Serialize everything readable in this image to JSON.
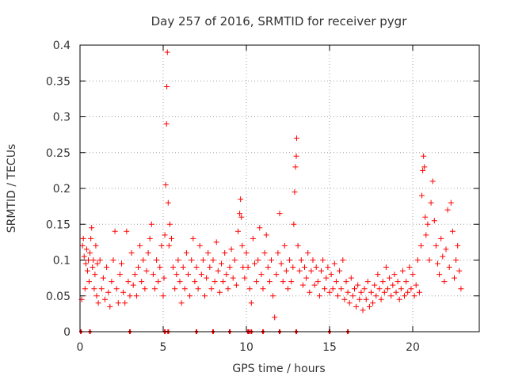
{
  "chart_data": {
    "type": "scatter",
    "title": "Day 257 of 2016, SRMTID for receiver pygr",
    "xlabel": "GPS time / hours",
    "ylabel": "SRMTID / TECUs",
    "xlim": [
      0,
      24
    ],
    "ylim": [
      0,
      0.4
    ],
    "x_ticks": [
      0,
      5,
      10,
      15,
      20
    ],
    "x_tick_labels": [
      "0",
      "5",
      "10",
      "15",
      "20"
    ],
    "y_ticks": [
      0,
      0.05,
      0.1,
      0.15,
      0.2,
      0.25,
      0.3,
      0.35,
      0.4
    ],
    "y_tick_labels": [
      "0",
      "0.05",
      "0.1",
      "0.15",
      "0.2",
      "0.25",
      "0.3",
      "0.35",
      "0.4"
    ],
    "grid": true,
    "marker": "+",
    "color": "#ff0000",
    "series": [
      {
        "name": "SRMTID",
        "points": [
          [
            0.1,
            0.045
          ],
          [
            0.15,
            0.12
          ],
          [
            0.2,
            0.13
          ],
          [
            0.25,
            0.105
          ],
          [
            0.3,
            0.06
          ],
          [
            0.35,
            0.095
          ],
          [
            0.4,
            0.115
          ],
          [
            0.45,
            0.085
          ],
          [
            0.5,
            0.1
          ],
          [
            0.55,
            0.07
          ],
          [
            0.6,
            0.11
          ],
          [
            0.65,
            0.13
          ],
          [
            0.7,
            0.145
          ],
          [
            0.75,
            0.09
          ],
          [
            0.8,
            0.1
          ],
          [
            0.85,
            0.06
          ],
          [
            0.9,
            0.08
          ],
          [
            0.95,
            0.12
          ],
          [
            1.0,
            0.05
          ],
          [
            1.05,
            0.095
          ],
          [
            1.1,
            0.04
          ],
          [
            1.2,
            0.1
          ],
          [
            1.3,
            0.06
          ],
          [
            1.4,
            0.075
          ],
          [
            1.5,
            0.045
          ],
          [
            1.6,
            0.09
          ],
          [
            1.7,
            0.055
          ],
          [
            1.8,
            0.035
          ],
          [
            1.9,
            0.07
          ],
          [
            2.0,
            0.1
          ],
          [
            2.1,
            0.14
          ],
          [
            2.2,
            0.06
          ],
          [
            2.3,
            0.04
          ],
          [
            2.4,
            0.08
          ],
          [
            2.5,
            0.095
          ],
          [
            2.6,
            0.055
          ],
          [
            2.7,
            0.04
          ],
          [
            2.8,
            0.14
          ],
          [
            2.9,
            0.07
          ],
          [
            3.0,
            0.05
          ],
          [
            3.1,
            0.11
          ],
          [
            3.2,
            0.065
          ],
          [
            3.3,
            0.08
          ],
          [
            3.4,
            0.05
          ],
          [
            3.5,
            0.09
          ],
          [
            3.6,
            0.12
          ],
          [
            3.7,
            0.07
          ],
          [
            3.8,
            0.1
          ],
          [
            3.9,
            0.06
          ],
          [
            4.0,
            0.085
          ],
          [
            4.1,
            0.11
          ],
          [
            4.2,
            0.13
          ],
          [
            4.3,
            0.15
          ],
          [
            4.4,
            0.08
          ],
          [
            4.5,
            0.06
          ],
          [
            4.6,
            0.1
          ],
          [
            4.7,
            0.07
          ],
          [
            4.8,
            0.09
          ],
          [
            4.9,
            0.12
          ],
          [
            5.0,
            0.05
          ],
          [
            5.05,
            0.075
          ],
          [
            5.1,
            0.135
          ],
          [
            5.15,
            0.205
          ],
          [
            5.2,
            0.29
          ],
          [
            5.22,
            0.342
          ],
          [
            5.25,
            0.39
          ],
          [
            5.3,
            0.18
          ],
          [
            5.35,
            0.12
          ],
          [
            5.4,
            0.15
          ],
          [
            5.5,
            0.13
          ],
          [
            5.6,
            0.09
          ],
          [
            5.7,
            0.06
          ],
          [
            5.8,
            0.08
          ],
          [
            5.9,
            0.1
          ],
          [
            6.0,
            0.07
          ],
          [
            6.1,
            0.04
          ],
          [
            6.2,
            0.09
          ],
          [
            6.3,
            0.06
          ],
          [
            6.4,
            0.11
          ],
          [
            6.5,
            0.08
          ],
          [
            6.6,
            0.05
          ],
          [
            6.7,
            0.1
          ],
          [
            6.8,
            0.13
          ],
          [
            6.9,
            0.07
          ],
          [
            7.0,
            0.09
          ],
          [
            7.1,
            0.06
          ],
          [
            7.2,
            0.12
          ],
          [
            7.3,
            0.08
          ],
          [
            7.4,
            0.1
          ],
          [
            7.5,
            0.05
          ],
          [
            7.6,
            0.075
          ],
          [
            7.7,
            0.11
          ],
          [
            7.8,
            0.09
          ],
          [
            7.9,
            0.06
          ],
          [
            8.0,
            0.1
          ],
          [
            8.1,
            0.07
          ],
          [
            8.2,
            0.125
          ],
          [
            8.3,
            0.085
          ],
          [
            8.4,
            0.055
          ],
          [
            8.5,
            0.095
          ],
          [
            8.6,
            0.07
          ],
          [
            8.7,
            0.11
          ],
          [
            8.8,
            0.08
          ],
          [
            8.9,
            0.06
          ],
          [
            9.0,
            0.09
          ],
          [
            9.1,
            0.115
          ],
          [
            9.2,
            0.075
          ],
          [
            9.3,
            0.1
          ],
          [
            9.4,
            0.065
          ],
          [
            9.5,
            0.14
          ],
          [
            9.6,
            0.165
          ],
          [
            9.65,
            0.185
          ],
          [
            9.7,
            0.16
          ],
          [
            9.75,
            0.12
          ],
          [
            9.8,
            0.09
          ],
          [
            9.9,
            0.075
          ],
          [
            10.0,
            0.11
          ],
          [
            10.1,
            0.09
          ],
          [
            10.2,
            0.06
          ],
          [
            10.3,
            0.04
          ],
          [
            10.4,
            0.13
          ],
          [
            10.5,
            0.095
          ],
          [
            10.6,
            0.07
          ],
          [
            10.7,
            0.1
          ],
          [
            10.8,
            0.145
          ],
          [
            10.9,
            0.08
          ],
          [
            11.0,
            0.06
          ],
          [
            11.1,
            0.11
          ],
          [
            11.2,
            0.135
          ],
          [
            11.3,
            0.09
          ],
          [
            11.4,
            0.07
          ],
          [
            11.5,
            0.1
          ],
          [
            11.6,
            0.05
          ],
          [
            11.7,
            0.02
          ],
          [
            11.8,
            0.08
          ],
          [
            11.9,
            0.11
          ],
          [
            12.0,
            0.165
          ],
          [
            12.1,
            0.095
          ],
          [
            12.2,
            0.07
          ],
          [
            12.3,
            0.12
          ],
          [
            12.4,
            0.085
          ],
          [
            12.5,
            0.06
          ],
          [
            12.6,
            0.1
          ],
          [
            12.7,
            0.07
          ],
          [
            12.8,
            0.09
          ],
          [
            12.85,
            0.15
          ],
          [
            12.9,
            0.195
          ],
          [
            12.95,
            0.23
          ],
          [
            13.0,
            0.245
          ],
          [
            13.02,
            0.27
          ],
          [
            13.1,
            0.12
          ],
          [
            13.2,
            0.085
          ],
          [
            13.3,
            0.1
          ],
          [
            13.4,
            0.065
          ],
          [
            13.5,
            0.09
          ],
          [
            13.6,
            0.075
          ],
          [
            13.7,
            0.11
          ],
          [
            13.8,
            0.055
          ],
          [
            13.9,
            0.085
          ],
          [
            14.0,
            0.1
          ],
          [
            14.1,
            0.065
          ],
          [
            14.2,
            0.09
          ],
          [
            14.3,
            0.07
          ],
          [
            14.4,
            0.05
          ],
          [
            14.5,
            0.085
          ],
          [
            14.6,
            0.1
          ],
          [
            14.7,
            0.06
          ],
          [
            14.8,
            0.075
          ],
          [
            14.9,
            0.09
          ],
          [
            15.0,
            0.055
          ],
          [
            15.1,
            0.08
          ],
          [
            15.2,
            0.06
          ],
          [
            15.3,
            0.095
          ],
          [
            15.4,
            0.07
          ],
          [
            15.5,
            0.05
          ],
          [
            15.6,
            0.085
          ],
          [
            15.7,
            0.06
          ],
          [
            15.8,
            0.1
          ],
          [
            15.9,
            0.045
          ],
          [
            16.0,
            0.07
          ],
          [
            16.1,
            0.055
          ],
          [
            16.2,
            0.04
          ],
          [
            16.3,
            0.075
          ],
          [
            16.4,
            0.05
          ],
          [
            16.5,
            0.06
          ],
          [
            16.6,
            0.035
          ],
          [
            16.7,
            0.065
          ],
          [
            16.8,
            0.045
          ],
          [
            16.9,
            0.055
          ],
          [
            17.0,
            0.03
          ],
          [
            17.1,
            0.06
          ],
          [
            17.2,
            0.045
          ],
          [
            17.3,
            0.07
          ],
          [
            17.4,
            0.035
          ],
          [
            17.5,
            0.055
          ],
          [
            17.6,
            0.04
          ],
          [
            17.7,
            0.065
          ],
          [
            17.8,
            0.05
          ],
          [
            17.9,
            0.08
          ],
          [
            18.0,
            0.06
          ],
          [
            18.1,
            0.045
          ],
          [
            18.2,
            0.07
          ],
          [
            18.3,
            0.055
          ],
          [
            18.4,
            0.09
          ],
          [
            18.5,
            0.06
          ],
          [
            18.6,
            0.075
          ],
          [
            18.7,
            0.05
          ],
          [
            18.8,
            0.065
          ],
          [
            18.9,
            0.08
          ],
          [
            19.0,
            0.055
          ],
          [
            19.1,
            0.07
          ],
          [
            19.2,
            0.045
          ],
          [
            19.3,
            0.06
          ],
          [
            19.4,
            0.085
          ],
          [
            19.5,
            0.05
          ],
          [
            19.6,
            0.07
          ],
          [
            19.7,
            0.055
          ],
          [
            19.8,
            0.09
          ],
          [
            19.9,
            0.06
          ],
          [
            20.0,
            0.08
          ],
          [
            20.1,
            0.05
          ],
          [
            20.2,
            0.065
          ],
          [
            20.3,
            0.1
          ],
          [
            20.4,
            0.055
          ],
          [
            20.5,
            0.12
          ],
          [
            20.55,
            0.19
          ],
          [
            20.6,
            0.225
          ],
          [
            20.65,
            0.245
          ],
          [
            20.7,
            0.23
          ],
          [
            20.75,
            0.16
          ],
          [
            20.8,
            0.135
          ],
          [
            20.9,
            0.15
          ],
          [
            21.0,
            0.1
          ],
          [
            21.1,
            0.18
          ],
          [
            21.2,
            0.21
          ],
          [
            21.3,
            0.155
          ],
          [
            21.4,
            0.12
          ],
          [
            21.5,
            0.095
          ],
          [
            21.6,
            0.08
          ],
          [
            21.7,
            0.13
          ],
          [
            21.8,
            0.105
          ],
          [
            21.9,
            0.07
          ],
          [
            22.0,
            0.115
          ],
          [
            22.1,
            0.17
          ],
          [
            22.2,
            0.09
          ],
          [
            22.3,
            0.18
          ],
          [
            22.4,
            0.14
          ],
          [
            22.5,
            0.075
          ],
          [
            22.6,
            0.1
          ],
          [
            22.7,
            0.12
          ],
          [
            22.8,
            0.085
          ],
          [
            22.9,
            0.06
          ]
        ]
      }
    ],
    "gap_markers_x": [
      0.05,
      0.6,
      3.0,
      5.1,
      5.3,
      7.0,
      8.0,
      9.0,
      10.1,
      10.15,
      10.3,
      11.0,
      12.0,
      13.0,
      15.0,
      16.1
    ]
  }
}
